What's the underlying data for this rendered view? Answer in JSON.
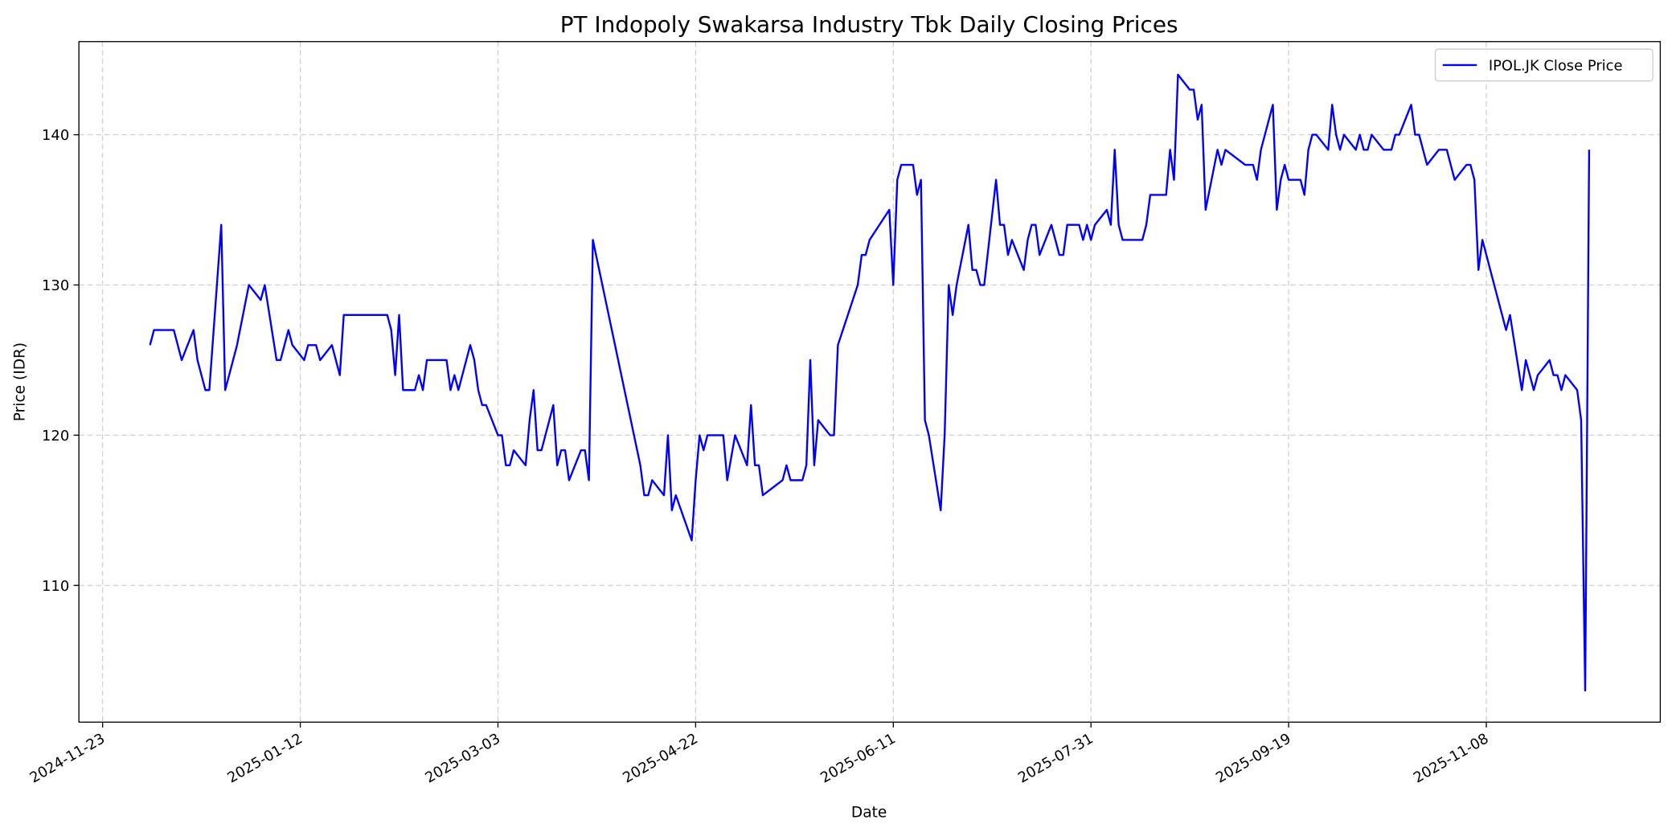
{
  "chart_data": {
    "type": "line",
    "title": "PT Indopoly Swakarsa Industry Tbk Daily Closing Prices",
    "xlabel": "Date",
    "ylabel": "Price (IDR)",
    "xlim": [
      "2024-11-17",
      "2025-12-22"
    ],
    "ylim": [
      100.9,
      146.2
    ],
    "x_ticks": [
      "2024-11-23",
      "2025-01-12",
      "2025-03-03",
      "2025-04-22",
      "2025-06-11",
      "2025-07-31",
      "2025-09-19",
      "2025-11-08"
    ],
    "y_ticks": [
      110,
      120,
      130,
      140
    ],
    "grid": true,
    "legend_position": "top-right",
    "series": [
      {
        "name": "IPOL.JK Close Price",
        "color": "#0000ff",
        "points": [
          [
            "2024-12-05",
            126
          ],
          [
            "2024-12-06",
            127
          ],
          [
            "2024-12-11",
            127
          ],
          [
            "2024-12-13",
            125
          ],
          [
            "2024-12-16",
            127
          ],
          [
            "2024-12-17",
            125
          ],
          [
            "2024-12-19",
            123
          ],
          [
            "2024-12-20",
            123
          ],
          [
            "2024-12-23",
            134
          ],
          [
            "2024-12-24",
            123
          ],
          [
            "2024-12-27",
            126
          ],
          [
            "2024-12-30",
            130
          ],
          [
            "2025-01-02",
            129
          ],
          [
            "2025-01-03",
            130
          ],
          [
            "2025-01-06",
            125
          ],
          [
            "2025-01-07",
            125
          ],
          [
            "2025-01-09",
            127
          ],
          [
            "2025-01-10",
            126
          ],
          [
            "2025-01-13",
            125
          ],
          [
            "2025-01-14",
            126
          ],
          [
            "2025-01-16",
            126
          ],
          [
            "2025-01-17",
            125
          ],
          [
            "2025-01-20",
            126
          ],
          [
            "2025-01-22",
            124
          ],
          [
            "2025-01-23",
            128
          ],
          [
            "2025-02-03",
            128
          ],
          [
            "2025-02-04",
            127
          ],
          [
            "2025-02-05",
            124
          ],
          [
            "2025-02-06",
            128
          ],
          [
            "2025-02-07",
            123
          ],
          [
            "2025-02-10",
            123
          ],
          [
            "2025-02-11",
            124
          ],
          [
            "2025-02-12",
            123
          ],
          [
            "2025-02-13",
            125
          ],
          [
            "2025-02-18",
            125
          ],
          [
            "2025-02-19",
            123
          ],
          [
            "2025-02-20",
            124
          ],
          [
            "2025-02-21",
            123
          ],
          [
            "2025-02-24",
            126
          ],
          [
            "2025-02-25",
            125
          ],
          [
            "2025-02-26",
            123
          ],
          [
            "2025-02-27",
            122
          ],
          [
            "2025-02-28",
            122
          ],
          [
            "2025-03-03",
            120
          ],
          [
            "2025-03-04",
            120
          ],
          [
            "2025-03-05",
            118
          ],
          [
            "2025-03-06",
            118
          ],
          [
            "2025-03-07",
            119
          ],
          [
            "2025-03-10",
            118
          ],
          [
            "2025-03-11",
            121
          ],
          [
            "2025-03-12",
            123
          ],
          [
            "2025-03-13",
            119
          ],
          [
            "2025-03-14",
            119
          ],
          [
            "2025-03-17",
            122
          ],
          [
            "2025-03-18",
            118
          ],
          [
            "2025-03-19",
            119
          ],
          [
            "2025-03-20",
            119
          ],
          [
            "2025-03-21",
            117
          ],
          [
            "2025-03-24",
            119
          ],
          [
            "2025-03-25",
            119
          ],
          [
            "2025-03-26",
            117
          ],
          [
            "2025-03-27",
            133
          ],
          [
            "2025-04-08",
            118
          ],
          [
            "2025-04-09",
            116
          ],
          [
            "2025-04-10",
            116
          ],
          [
            "2025-04-11",
            117
          ],
          [
            "2025-04-14",
            116
          ],
          [
            "2025-04-15",
            120
          ],
          [
            "2025-04-16",
            115
          ],
          [
            "2025-04-17",
            116
          ],
          [
            "2025-04-21",
            113
          ],
          [
            "2025-04-22",
            117
          ],
          [
            "2025-04-23",
            120
          ],
          [
            "2025-04-24",
            119
          ],
          [
            "2025-04-25",
            120
          ],
          [
            "2025-04-29",
            120
          ],
          [
            "2025-04-30",
            117
          ],
          [
            "2025-05-02",
            120
          ],
          [
            "2025-05-05",
            118
          ],
          [
            "2025-05-06",
            122
          ],
          [
            "2025-05-07",
            118
          ],
          [
            "2025-05-08",
            118
          ],
          [
            "2025-05-09",
            116
          ],
          [
            "2025-05-14",
            117
          ],
          [
            "2025-05-15",
            118
          ],
          [
            "2025-05-16",
            117
          ],
          [
            "2025-05-19",
            117
          ],
          [
            "2025-05-20",
            118
          ],
          [
            "2025-05-21",
            125
          ],
          [
            "2025-05-22",
            118
          ],
          [
            "2025-05-23",
            121
          ],
          [
            "2025-05-26",
            120
          ],
          [
            "2025-05-27",
            120
          ],
          [
            "2025-05-28",
            126
          ],
          [
            "2025-06-02",
            130
          ],
          [
            "2025-06-03",
            132
          ],
          [
            "2025-06-04",
            132
          ],
          [
            "2025-06-05",
            133
          ],
          [
            "2025-06-10",
            135
          ],
          [
            "2025-06-11",
            130
          ],
          [
            "2025-06-12",
            137
          ],
          [
            "2025-06-13",
            138
          ],
          [
            "2025-06-16",
            138
          ],
          [
            "2025-06-17",
            136
          ],
          [
            "2025-06-18",
            137
          ],
          [
            "2025-06-19",
            121
          ],
          [
            "2025-06-20",
            120
          ],
          [
            "2025-06-23",
            115
          ],
          [
            "2025-06-24",
            120
          ],
          [
            "2025-06-25",
            130
          ],
          [
            "2025-06-26",
            128
          ],
          [
            "2025-06-27",
            130
          ],
          [
            "2025-06-30",
            134
          ],
          [
            "2025-07-01",
            131
          ],
          [
            "2025-07-02",
            131
          ],
          [
            "2025-07-03",
            130
          ],
          [
            "2025-07-04",
            130
          ],
          [
            "2025-07-07",
            137
          ],
          [
            "2025-07-08",
            134
          ],
          [
            "2025-07-09",
            134
          ],
          [
            "2025-07-10",
            132
          ],
          [
            "2025-07-11",
            133
          ],
          [
            "2025-07-14",
            131
          ],
          [
            "2025-07-15",
            133
          ],
          [
            "2025-07-16",
            134
          ],
          [
            "2025-07-17",
            134
          ],
          [
            "2025-07-18",
            132
          ],
          [
            "2025-07-21",
            134
          ],
          [
            "2025-07-23",
            132
          ],
          [
            "2025-07-24",
            132
          ],
          [
            "2025-07-25",
            134
          ],
          [
            "2025-07-28",
            134
          ],
          [
            "2025-07-29",
            133
          ],
          [
            "2025-07-30",
            134
          ],
          [
            "2025-07-31",
            133
          ],
          [
            "2025-08-01",
            134
          ],
          [
            "2025-08-04",
            135
          ],
          [
            "2025-08-05",
            134
          ],
          [
            "2025-08-06",
            139
          ],
          [
            "2025-08-07",
            134
          ],
          [
            "2025-08-08",
            133
          ],
          [
            "2025-08-13",
            133
          ],
          [
            "2025-08-14",
            134
          ],
          [
            "2025-08-15",
            136
          ],
          [
            "2025-08-19",
            136
          ],
          [
            "2025-08-20",
            139
          ],
          [
            "2025-08-21",
            137
          ],
          [
            "2025-08-22",
            144
          ],
          [
            "2025-08-25",
            143
          ],
          [
            "2025-08-26",
            143
          ],
          [
            "2025-08-27",
            141
          ],
          [
            "2025-08-28",
            142
          ],
          [
            "2025-08-29",
            135
          ],
          [
            "2025-09-01",
            139
          ],
          [
            "2025-09-02",
            138
          ],
          [
            "2025-09-03",
            139
          ],
          [
            "2025-09-08",
            138
          ],
          [
            "2025-09-10",
            138
          ],
          [
            "2025-09-11",
            137
          ],
          [
            "2025-09-12",
            139
          ],
          [
            "2025-09-15",
            142
          ],
          [
            "2025-09-16",
            135
          ],
          [
            "2025-09-17",
            137
          ],
          [
            "2025-09-18",
            138
          ],
          [
            "2025-09-19",
            137
          ],
          [
            "2025-09-22",
            137
          ],
          [
            "2025-09-23",
            136
          ],
          [
            "2025-09-24",
            139
          ],
          [
            "2025-09-25",
            140
          ],
          [
            "2025-09-26",
            140
          ],
          [
            "2025-09-29",
            139
          ],
          [
            "2025-09-30",
            142
          ],
          [
            "2025-10-01",
            140
          ],
          [
            "2025-10-02",
            139
          ],
          [
            "2025-10-03",
            140
          ],
          [
            "2025-10-06",
            139
          ],
          [
            "2025-10-07",
            140
          ],
          [
            "2025-10-08",
            139
          ],
          [
            "2025-10-09",
            139
          ],
          [
            "2025-10-10",
            140
          ],
          [
            "2025-10-13",
            139
          ],
          [
            "2025-10-15",
            139
          ],
          [
            "2025-10-16",
            140
          ],
          [
            "2025-10-17",
            140
          ],
          [
            "2025-10-20",
            142
          ],
          [
            "2025-10-21",
            140
          ],
          [
            "2025-10-22",
            140
          ],
          [
            "2025-10-24",
            138
          ],
          [
            "2025-10-27",
            139
          ],
          [
            "2025-10-29",
            139
          ],
          [
            "2025-10-31",
            137
          ],
          [
            "2025-11-03",
            138
          ],
          [
            "2025-11-04",
            138
          ],
          [
            "2025-11-05",
            137
          ],
          [
            "2025-11-06",
            131
          ],
          [
            "2025-11-07",
            133
          ],
          [
            "2025-11-13",
            127
          ],
          [
            "2025-11-14",
            128
          ],
          [
            "2025-11-17",
            123
          ],
          [
            "2025-11-18",
            125
          ],
          [
            "2025-11-20",
            123
          ],
          [
            "2025-11-21",
            124
          ],
          [
            "2025-11-24",
            125
          ],
          [
            "2025-11-25",
            124
          ],
          [
            "2025-11-26",
            124
          ],
          [
            "2025-11-27",
            123
          ],
          [
            "2025-11-28",
            124
          ],
          [
            "2025-12-01",
            123
          ],
          [
            "2025-12-02",
            121
          ],
          [
            "2025-12-03",
            103
          ],
          [
            "2025-12-04",
            139
          ]
        ]
      }
    ]
  }
}
